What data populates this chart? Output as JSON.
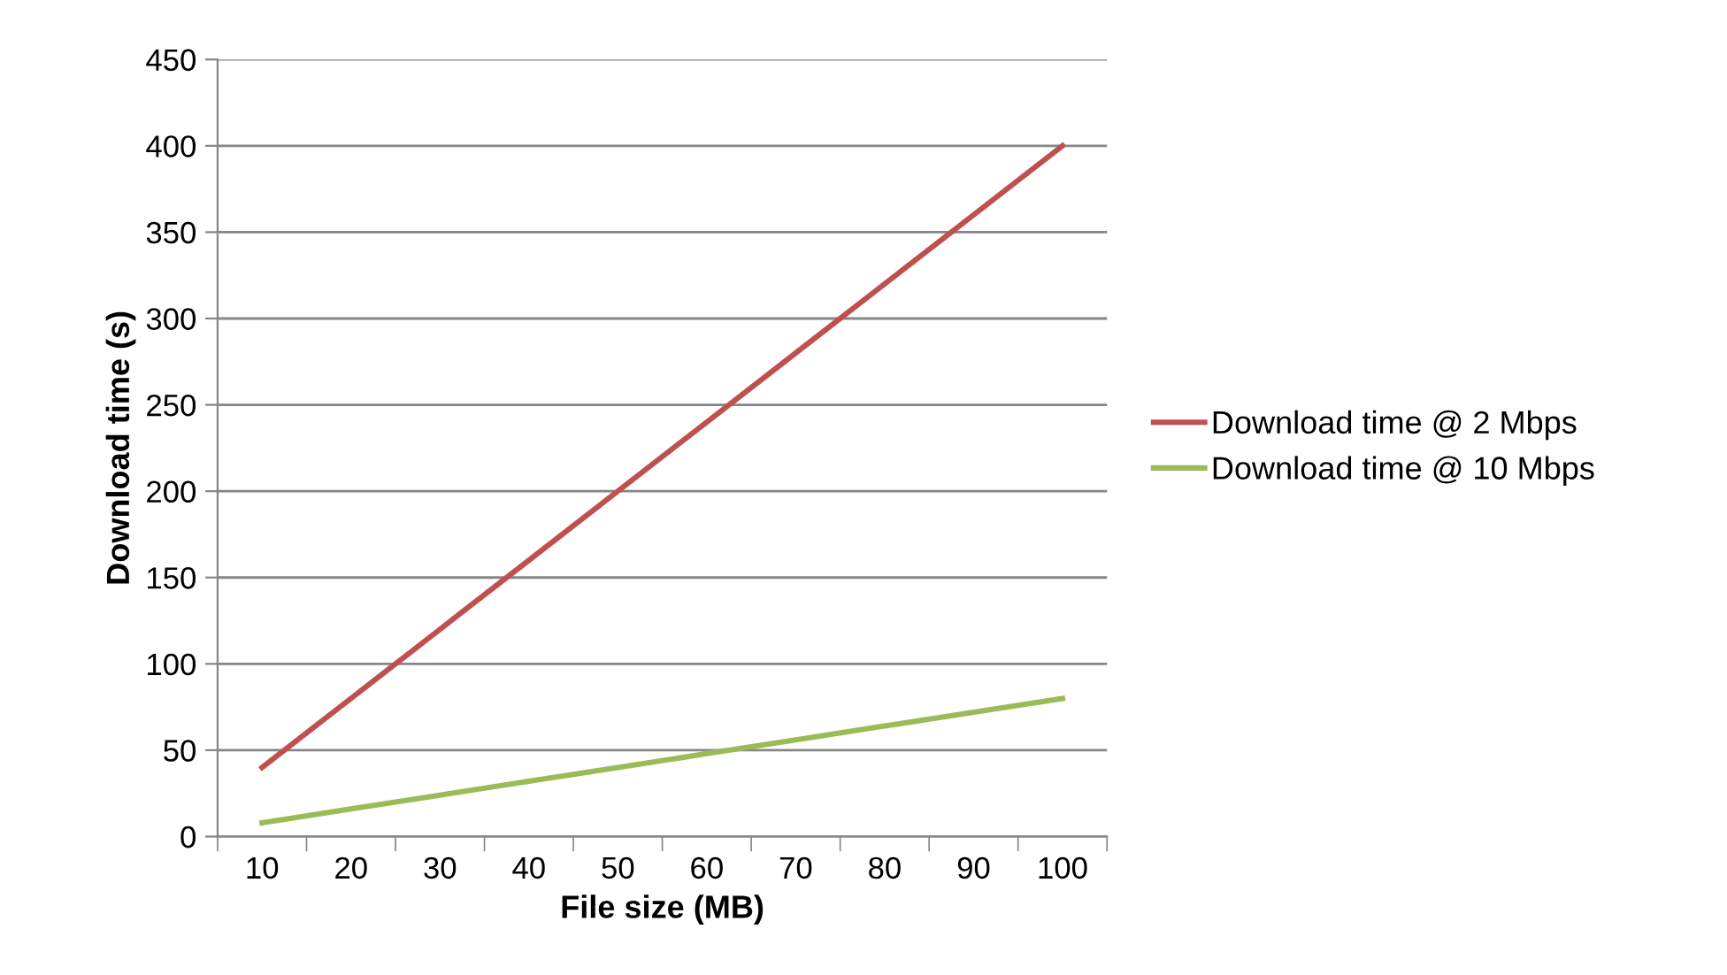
{
  "chart_data": {
    "type": "line",
    "xlabel": "File size (MB)",
    "ylabel": "Download time (s)",
    "categories": [
      "10",
      "20",
      "30",
      "40",
      "50",
      "60",
      "70",
      "80",
      "90",
      "100"
    ],
    "series": [
      {
        "name": "Download time @ 2 Mbps",
        "color": "#c0504d",
        "values": [
          40,
          80,
          120,
          160,
          200,
          240,
          280,
          320,
          360,
          400
        ]
      },
      {
        "name": "Download time @ 10 Mbps",
        "color": "#9bbb59",
        "values": [
          8,
          16,
          24,
          32,
          40,
          48,
          56,
          64,
          72,
          80
        ]
      }
    ],
    "ylim": [
      0,
      450
    ],
    "yticks": [
      0,
      50,
      100,
      150,
      200,
      250,
      300,
      350,
      400,
      450
    ],
    "grid": "y",
    "legend": "right",
    "marker": "none",
    "line_style": "solid"
  }
}
